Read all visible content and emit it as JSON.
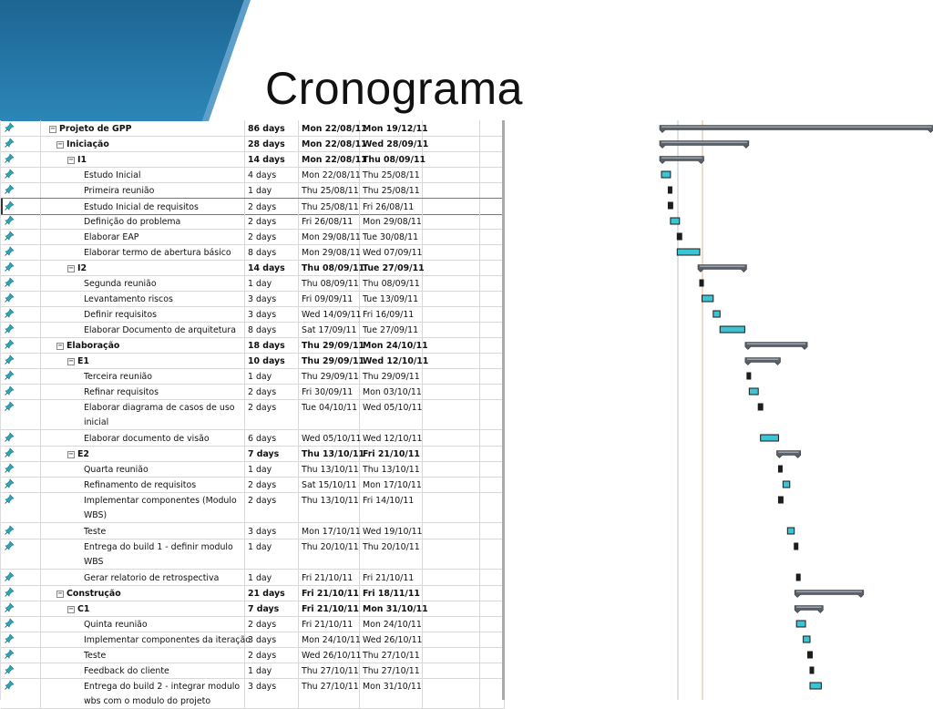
{
  "slide": {
    "title": "Cronograma",
    "header_color": "#2a79aa"
  },
  "tasks": [
    {
      "name": "Projeto de GPP",
      "level": 0,
      "summary": true,
      "duration": "86 days",
      "start": "Mon 22/08/11",
      "finish": "Mon 19/12/11"
    },
    {
      "name": "Iniciação",
      "level": 1,
      "summary": true,
      "duration": "28 days",
      "start": "Mon 22/08/11",
      "finish": "Wed 28/09/11"
    },
    {
      "name": "I1",
      "level": 2,
      "summary": true,
      "duration": "14 days",
      "start": "Mon 22/08/11",
      "finish": "Thu 08/09/11"
    },
    {
      "name": "Estudo Inicial",
      "level": 3,
      "summary": false,
      "duration": "4 days",
      "start": "Mon 22/08/11",
      "finish": "Thu 25/08/11"
    },
    {
      "name": "Primeira reunião",
      "level": 3,
      "summary": false,
      "duration": "1 day",
      "start": "Thu 25/08/11",
      "finish": "Thu 25/08/11"
    },
    {
      "name": "Estudo Inicial de requisitos",
      "level": 3,
      "summary": false,
      "duration": "2 days",
      "start": "Thu 25/08/11",
      "finish": "Fri 26/08/11",
      "selected": true
    },
    {
      "name": "Definição do problema",
      "level": 3,
      "summary": false,
      "duration": "2 days",
      "start": "Fri 26/08/11",
      "finish": "Mon 29/08/11"
    },
    {
      "name": "Elaborar EAP",
      "level": 3,
      "summary": false,
      "duration": "2 days",
      "start": "Mon 29/08/11",
      "finish": "Tue 30/08/11"
    },
    {
      "name": "Elaborar termo de abertura básico",
      "level": 3,
      "summary": false,
      "duration": "8 days",
      "start": "Mon 29/08/11",
      "finish": "Wed 07/09/11"
    },
    {
      "name": "I2",
      "level": 2,
      "summary": true,
      "duration": "14 days",
      "start": "Thu 08/09/11",
      "finish": "Tue 27/09/11"
    },
    {
      "name": "Segunda reunião",
      "level": 3,
      "summary": false,
      "duration": "1 day",
      "start": "Thu 08/09/11",
      "finish": "Thu 08/09/11"
    },
    {
      "name": "Levantamento riscos",
      "level": 3,
      "summary": false,
      "duration": "3 days",
      "start": "Fri 09/09/11",
      "finish": "Tue 13/09/11"
    },
    {
      "name": "Definir requisitos",
      "level": 3,
      "summary": false,
      "duration": "3 days",
      "start": "Wed 14/09/11",
      "finish": "Fri 16/09/11"
    },
    {
      "name": "Elaborar Documento de arquitetura",
      "level": 3,
      "summary": false,
      "duration": "8 days",
      "start": "Sat 17/09/11",
      "finish": "Tue 27/09/11"
    },
    {
      "name": "Elaboração",
      "level": 1,
      "summary": true,
      "duration": "18 days",
      "start": "Thu 29/09/11",
      "finish": "Mon 24/10/11"
    },
    {
      "name": "E1",
      "level": 2,
      "summary": true,
      "duration": "10 days",
      "start": "Thu 29/09/11",
      "finish": "Wed 12/10/11"
    },
    {
      "name": "Terceira reunião",
      "level": 3,
      "summary": false,
      "duration": "1 day",
      "start": "Thu 29/09/11",
      "finish": "Thu 29/09/11"
    },
    {
      "name": "Refinar requisitos",
      "level": 3,
      "summary": false,
      "duration": "2 days",
      "start": "Fri 30/09/11",
      "finish": "Mon 03/10/11"
    },
    {
      "name": "Elaborar diagrama de casos de uso inicial",
      "level": 3,
      "summary": false,
      "duration": "2 days",
      "start": "Tue 04/10/11",
      "finish": "Wed 05/10/11",
      "tall": true
    },
    {
      "name": "Elaborar documento de visão",
      "level": 3,
      "summary": false,
      "duration": "6 days",
      "start": "Wed 05/10/11",
      "finish": "Wed 12/10/11"
    },
    {
      "name": "E2",
      "level": 2,
      "summary": true,
      "duration": "7 days",
      "start": "Thu 13/10/11",
      "finish": "Fri 21/10/11"
    },
    {
      "name": "Quarta reunião",
      "level": 3,
      "summary": false,
      "duration": "1 day",
      "start": "Thu 13/10/11",
      "finish": "Thu 13/10/11"
    },
    {
      "name": "Refinamento de requisitos",
      "level": 3,
      "summary": false,
      "duration": "2 days",
      "start": "Sat 15/10/11",
      "finish": "Mon 17/10/11"
    },
    {
      "name": "Implementar componentes (Modulo WBS)",
      "level": 3,
      "summary": false,
      "duration": "2 days",
      "start": "Thu 13/10/11",
      "finish": "Fri 14/10/11",
      "tall": true
    },
    {
      "name": "Teste",
      "level": 3,
      "summary": false,
      "duration": "3 days",
      "start": "Mon 17/10/11",
      "finish": "Wed 19/10/11"
    },
    {
      "name": "Entrega do build 1 - definir modulo WBS",
      "level": 3,
      "summary": false,
      "duration": "1 day",
      "start": "Thu 20/10/11",
      "finish": "Thu 20/10/11",
      "tall": true
    },
    {
      "name": "Gerar relatorio de retrospectiva",
      "level": 3,
      "summary": false,
      "duration": "1 day",
      "start": "Fri 21/10/11",
      "finish": "Fri 21/10/11"
    },
    {
      "name": "Construção",
      "level": 1,
      "summary": true,
      "duration": "21 days",
      "start": "Fri 21/10/11",
      "finish": "Fri 18/11/11"
    },
    {
      "name": "C1",
      "level": 2,
      "summary": true,
      "duration": "7 days",
      "start": "Fri 21/10/11",
      "finish": "Mon 31/10/11"
    },
    {
      "name": "Quinta reunião",
      "level": 3,
      "summary": false,
      "duration": "2 days",
      "start": "Fri 21/10/11",
      "finish": "Mon 24/10/11"
    },
    {
      "name": "Implementar componentes da iteração",
      "level": 3,
      "summary": false,
      "duration": "3 days",
      "start": "Mon 24/10/11",
      "finish": "Wed 26/10/11"
    },
    {
      "name": "Teste",
      "level": 3,
      "summary": false,
      "duration": "2 days",
      "start": "Wed 26/10/11",
      "finish": "Thu 27/10/11"
    },
    {
      "name": "Feedback do cliente",
      "level": 3,
      "summary": false,
      "duration": "1 day",
      "start": "Thu 27/10/11",
      "finish": "Thu 27/10/11"
    },
    {
      "name": "Entrega do build 2 - integrar modulo wbs com o modulo do projeto",
      "level": 3,
      "summary": false,
      "duration": "3 days",
      "start": "Thu 27/10/11",
      "finish": "Mon 31/10/11",
      "tall": true
    }
  ],
  "gantt": {
    "summary_color": "#5a6068",
    "task_color": "#3cc3d4"
  }
}
